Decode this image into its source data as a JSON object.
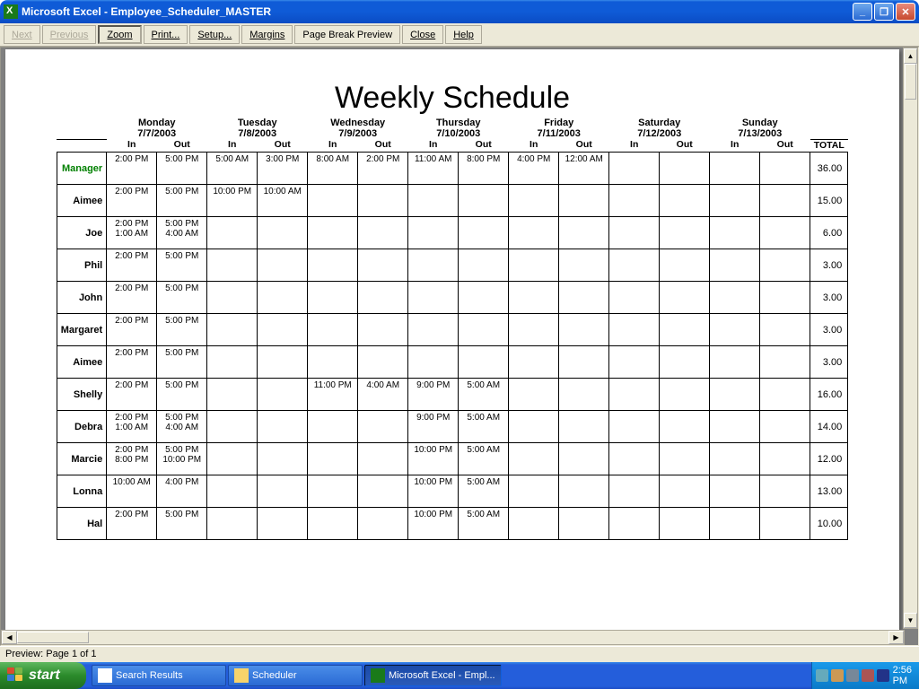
{
  "window": {
    "title": "Microsoft Excel - Employee_Scheduler_MASTER"
  },
  "toolbar": {
    "next": "Next",
    "previous": "Previous",
    "zoom": "Zoom",
    "print": "Print...",
    "setup": "Setup...",
    "margins": "Margins",
    "page_break": "Page Break Preview",
    "close": "Close",
    "help": "Help"
  },
  "schedule": {
    "title": "Weekly Schedule",
    "days": [
      {
        "name": "Monday",
        "date": "7/7/2003"
      },
      {
        "name": "Tuesday",
        "date": "7/8/2003"
      },
      {
        "name": "Wednesday",
        "date": "7/9/2003"
      },
      {
        "name": "Thursday",
        "date": "7/10/2003"
      },
      {
        "name": "Friday",
        "date": "7/11/2003"
      },
      {
        "name": "Saturday",
        "date": "7/12/2003"
      },
      {
        "name": "Sunday",
        "date": "7/13/2003"
      }
    ],
    "in_label": "In",
    "out_label": "Out",
    "total_label": "TOTAL",
    "employees": [
      {
        "name": "Manager",
        "manager": true,
        "total": "36.00",
        "shifts": [
          [
            [
              "2:00 PM",
              "5:00 PM"
            ]
          ],
          [
            [
              "5:00 AM",
              "3:00 PM"
            ]
          ],
          [
            [
              "8:00 AM",
              "2:00 PM"
            ]
          ],
          [
            [
              "11:00 AM",
              "8:00 PM"
            ]
          ],
          [
            [
              "4:00 PM",
              "12:00 AM"
            ]
          ],
          [],
          []
        ]
      },
      {
        "name": "Aimee",
        "total": "15.00",
        "shifts": [
          [
            [
              "2:00 PM",
              "5:00 PM"
            ]
          ],
          [
            [
              "10:00 PM",
              "10:00 AM"
            ]
          ],
          [],
          [],
          [],
          [],
          []
        ]
      },
      {
        "name": "Joe",
        "total": "6.00",
        "shifts": [
          [
            [
              "2:00 PM",
              "5:00 PM"
            ],
            [
              "1:00 AM",
              "4:00 AM"
            ]
          ],
          [],
          [],
          [],
          [],
          [],
          []
        ]
      },
      {
        "name": "Phil",
        "total": "3.00",
        "shifts": [
          [
            [
              "2:00 PM",
              "5:00 PM"
            ]
          ],
          [],
          [],
          [],
          [],
          [],
          []
        ]
      },
      {
        "name": "John",
        "total": "3.00",
        "shifts": [
          [
            [
              "2:00 PM",
              "5:00 PM"
            ]
          ],
          [],
          [],
          [],
          [],
          [],
          []
        ]
      },
      {
        "name": "Margaret",
        "total": "3.00",
        "shifts": [
          [
            [
              "2:00 PM",
              "5:00 PM"
            ]
          ],
          [],
          [],
          [],
          [],
          [],
          []
        ]
      },
      {
        "name": "Aimee",
        "total": "3.00",
        "shifts": [
          [
            [
              "2:00 PM",
              "5:00 PM"
            ]
          ],
          [],
          [],
          [],
          [],
          [],
          []
        ]
      },
      {
        "name": "Shelly",
        "total": "16.00",
        "shifts": [
          [
            [
              "2:00 PM",
              "5:00 PM"
            ]
          ],
          [],
          [
            [
              "11:00 PM",
              "4:00 AM"
            ]
          ],
          [
            [
              "9:00 PM",
              "5:00 AM"
            ]
          ],
          [],
          [],
          []
        ]
      },
      {
        "name": "Debra",
        "total": "14.00",
        "shifts": [
          [
            [
              "2:00 PM",
              "5:00 PM"
            ],
            [
              "1:00 AM",
              "4:00 AM"
            ]
          ],
          [],
          [],
          [
            [
              "9:00 PM",
              "5:00 AM"
            ]
          ],
          [],
          [],
          []
        ]
      },
      {
        "name": "Marcie",
        "total": "12.00",
        "shifts": [
          [
            [
              "2:00 PM",
              "5:00 PM"
            ],
            [
              "8:00 PM",
              "10:00 PM"
            ]
          ],
          [],
          [],
          [
            [
              "10:00 PM",
              "5:00 AM"
            ]
          ],
          [],
          [],
          []
        ]
      },
      {
        "name": "Lonna",
        "total": "13.00",
        "shifts": [
          [
            [
              "10:00 AM",
              "4:00 PM"
            ]
          ],
          [],
          [],
          [
            [
              "10:00 PM",
              "5:00 AM"
            ]
          ],
          [],
          [],
          []
        ]
      },
      {
        "name": "Hal",
        "total": "10.00",
        "shifts": [
          [
            [
              "2:00 PM",
              "5:00 PM"
            ]
          ],
          [],
          [],
          [
            [
              "10:00 PM",
              "5:00 AM"
            ]
          ],
          [],
          [],
          []
        ]
      }
    ]
  },
  "status": {
    "text": "Preview: Page 1 of 1"
  },
  "taskbar": {
    "start": "start",
    "items": [
      {
        "label": "Search Results",
        "active": false,
        "color": "#fff"
      },
      {
        "label": "Scheduler",
        "active": false,
        "color": "#f7d36b"
      },
      {
        "label": "Microsoft Excel - Empl...",
        "active": true,
        "color": "#1a7a1a"
      }
    ],
    "clock": "2:56 PM"
  },
  "style": {
    "title_font": "Arial",
    "title_size": 34,
    "cell_font_size": 10,
    "colors": {
      "titlebar": "#0f5bd7",
      "taskbar": "#245edb",
      "toolbar": "#ece9d8",
      "border": "#000000",
      "manager": "#008000"
    }
  }
}
